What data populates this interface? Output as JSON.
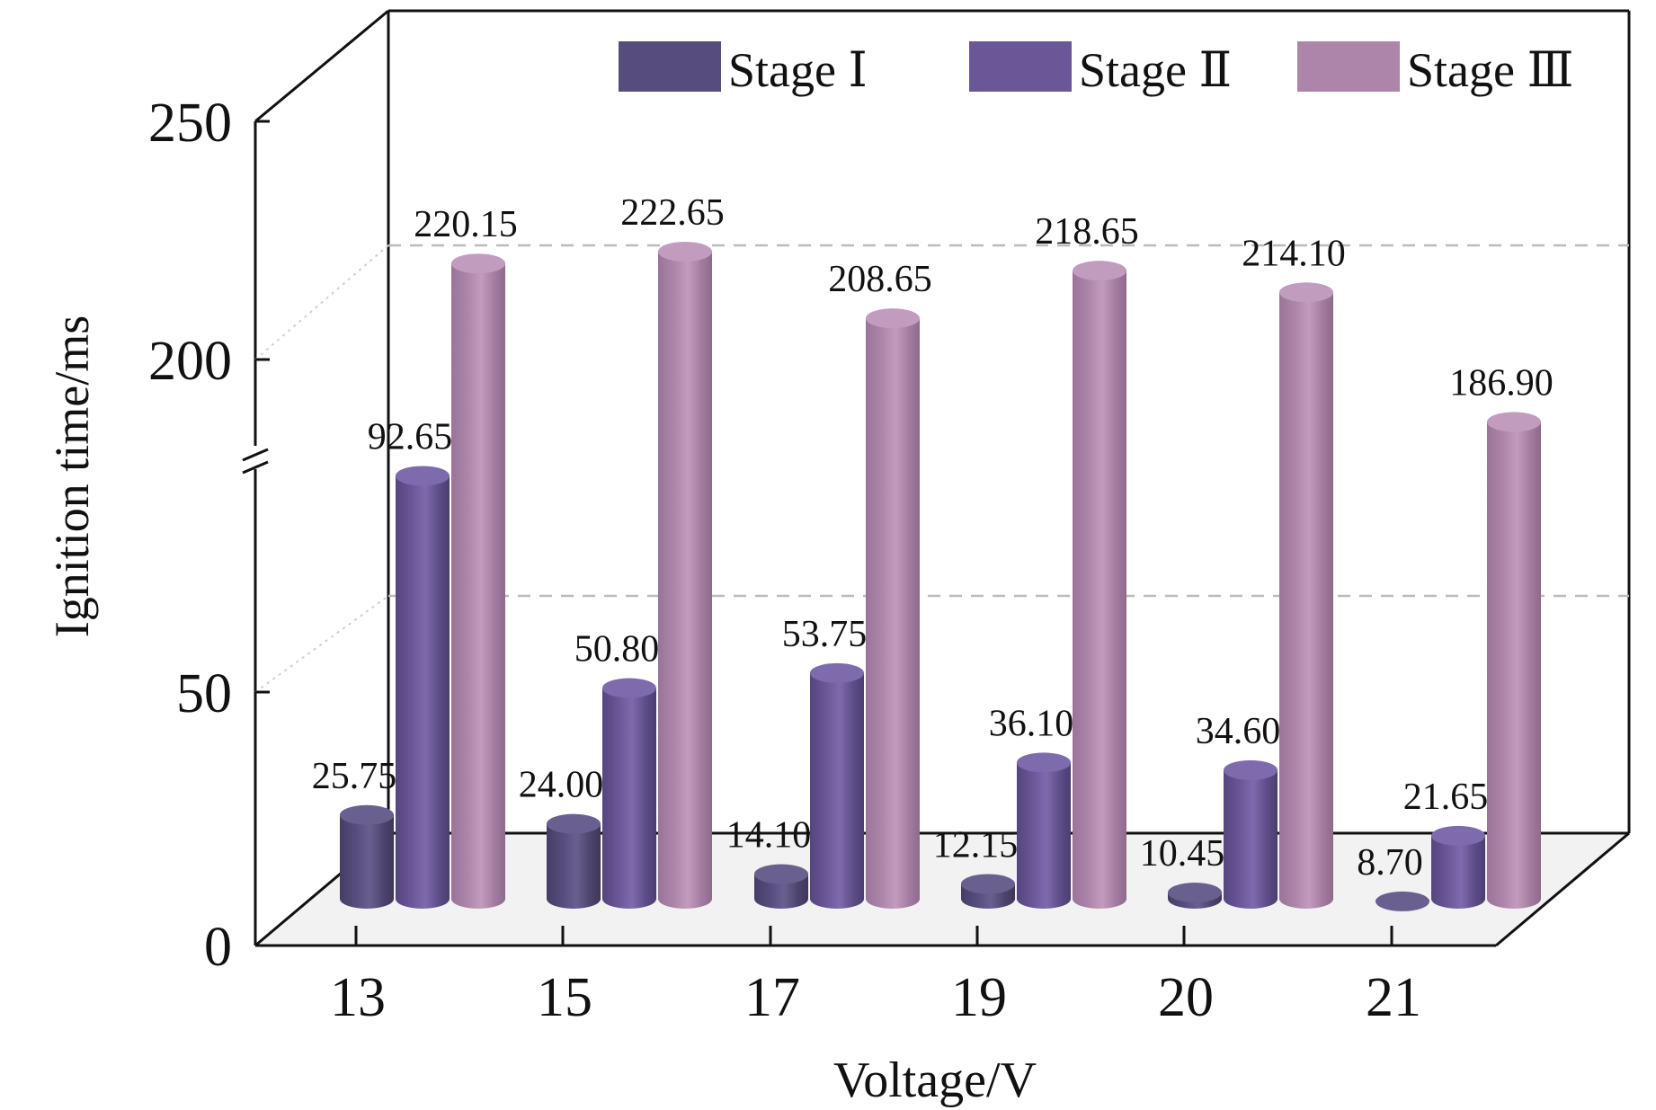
{
  "chart_data": {
    "type": "bar",
    "style": "3d-cylinder",
    "title": "",
    "xlabel": "Voltage/V",
    "ylabel": "Ignition time/ms",
    "categories": [
      "13",
      "15",
      "17",
      "19",
      "20",
      "21"
    ],
    "series": [
      {
        "name": "Stage Ⅰ",
        "values": [
          25.75,
          24.0,
          14.1,
          12.15,
          10.45,
          8.7
        ],
        "labels": [
          "25.75",
          "24.00",
          "14.10",
          "12.15",
          "10.45",
          "8.70"
        ]
      },
      {
        "name": "Stage Ⅱ",
        "values": [
          92.65,
          50.8,
          53.75,
          36.1,
          34.6,
          21.65
        ],
        "labels": [
          "92.65",
          "50.80",
          "53.75",
          "36.10",
          "34.60",
          "21.65"
        ]
      },
      {
        "name": "Stage Ⅲ",
        "values": [
          220.15,
          222.65,
          208.65,
          218.65,
          214.1,
          186.9
        ],
        "labels": [
          "220.15",
          "222.65",
          "208.65",
          "218.65",
          "214.10",
          "186.90"
        ]
      }
    ],
    "yticks": [
      "0",
      "50",
      "200",
      "250"
    ],
    "axis_break": {
      "lower_range": [
        0,
        100
      ],
      "upper_range": [
        175,
        250
      ]
    },
    "legend_position": "top",
    "grid": "dashed"
  },
  "colors": {
    "stage1": "#574d7c",
    "stage2": "#6a5798",
    "stage3": "#ad85aa",
    "floor": "#f2f2f2",
    "grid": "#bbbbbb",
    "axis": "#111111"
  }
}
